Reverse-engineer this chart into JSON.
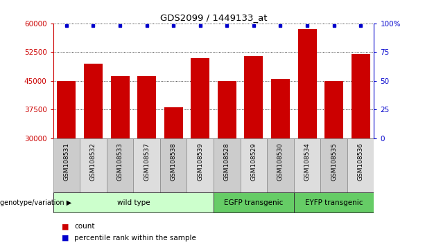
{
  "title": "GDS2099 / 1449133_at",
  "samples": [
    "GSM108531",
    "GSM108532",
    "GSM108533",
    "GSM108537",
    "GSM108538",
    "GSM108539",
    "GSM108528",
    "GSM108529",
    "GSM108530",
    "GSM108534",
    "GSM108535",
    "GSM108536"
  ],
  "counts": [
    44900,
    49500,
    46200,
    46200,
    38200,
    51000,
    45000,
    51500,
    45500,
    58500,
    44900,
    52000
  ],
  "group_configs": [
    {
      "label": "wild type",
      "start": 0,
      "end": 6,
      "color": "#ccffcc"
    },
    {
      "label": "EGFP transgenic",
      "start": 6,
      "end": 9,
      "color": "#66cc66"
    },
    {
      "label": "EYFP transgenic",
      "start": 9,
      "end": 12,
      "color": "#66cc66"
    }
  ],
  "ymin": 30000,
  "ymax": 60000,
  "yticks": [
    30000,
    37500,
    45000,
    52500,
    60000
  ],
  "y2ticks": [
    0,
    25,
    50,
    75,
    100
  ],
  "bar_color": "#cc0000",
  "dot_color": "#0000cc",
  "bar_width": 0.7,
  "ylabel_color": "#cc0000",
  "y2label_color": "#0000cc",
  "legend_count_color": "#cc0000",
  "legend_pct_color": "#0000cc",
  "legend_count_label": "count",
  "legend_pct_label": "percentile rank within the sample",
  "genotype_label": "genotype/variation"
}
